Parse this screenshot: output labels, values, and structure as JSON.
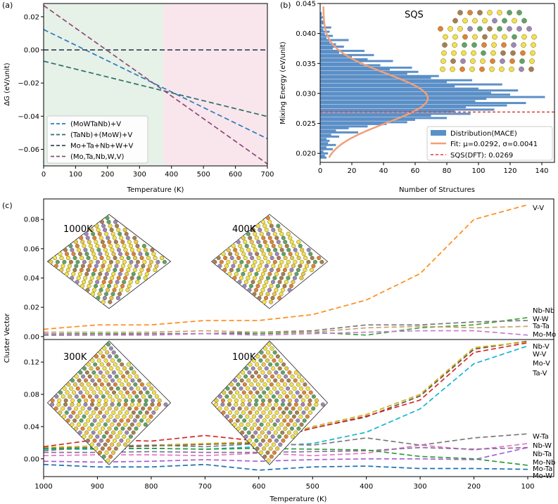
{
  "panel_labels": {
    "a": "(a)",
    "b": "(b)",
    "c": "(c)"
  },
  "chart_data": [
    {
      "id": "a",
      "type": "line",
      "title": "",
      "xlabel": "Temperature (K)",
      "ylabel": "ΔG (eV/unit)",
      "xlim": [
        0,
        700
      ],
      "ylim": [
        -0.07,
        0.028
      ],
      "xticks": [
        0,
        100,
        200,
        300,
        400,
        500,
        600,
        700
      ],
      "yticks": [
        -0.06,
        -0.04,
        -0.02,
        0.0,
        0.02
      ],
      "ytick_labels": [
        "−0.06",
        "−0.04",
        "−0.02",
        "0.00",
        "0.02"
      ],
      "regions": [
        {
          "x0": 0,
          "x1": 375,
          "color": "#e6f1e8"
        },
        {
          "x0": 375,
          "x1": 700,
          "color": "#f8e6ec"
        }
      ],
      "series": [
        {
          "name": "(MoWTaNb)+V",
          "color": "#2b7bba",
          "dash": "7,4",
          "x": [
            0,
            700
          ],
          "y": [
            0.0123,
            -0.0536
          ]
        },
        {
          "name": "(TaNb)+(MoW)+V",
          "color": "#2e6e66",
          "dash": "7,4",
          "x": [
            0,
            700
          ],
          "y": [
            -0.0068,
            -0.0402
          ]
        },
        {
          "name": "Mo+Ta+Nb+W+V",
          "color": "#3c4a5a",
          "dash": "7,4",
          "x": [
            0,
            700
          ],
          "y": [
            0.0,
            0.0
          ]
        },
        {
          "name": "(Mo,Ta,Nb,W,V)",
          "color": "#8e4a76",
          "dash": "7,4",
          "x": [
            0,
            700
          ],
          "y": [
            0.0268,
            -0.0688
          ]
        }
      ],
      "legend": "lower-left"
    },
    {
      "id": "b",
      "type": "bar",
      "orientation": "horizontal",
      "xlabel": "Number of Structures",
      "ylabel": "Mixing Energy (eV/unit)",
      "xlim": [
        0,
        148
      ],
      "ylim": [
        0.0185,
        0.045
      ],
      "xticks": [
        0,
        20,
        40,
        60,
        80,
        100,
        120,
        140
      ],
      "yticks": [
        0.02,
        0.025,
        0.03,
        0.035,
        0.04,
        0.045
      ],
      "ytick_labels": [
        "0.020",
        "0.025",
        "0.030",
        "0.035",
        "0.040",
        "0.045"
      ],
      "inset_label": "SQS",
      "bin_width": 0.00035,
      "bins_center": [
        0.0193,
        0.0196,
        0.02,
        0.0203,
        0.0207,
        0.021,
        0.0214,
        0.0217,
        0.0221,
        0.0224,
        0.0228,
        0.0231,
        0.0235,
        0.0238,
        0.0242,
        0.0245,
        0.0249,
        0.0252,
        0.0256,
        0.0259,
        0.0263,
        0.0266,
        0.027,
        0.0273,
        0.0277,
        0.028,
        0.0284,
        0.0287,
        0.0291,
        0.0294,
        0.0298,
        0.0301,
        0.0305,
        0.0308,
        0.0312,
        0.0315,
        0.0319,
        0.0322,
        0.0326,
        0.0329,
        0.0333,
        0.0336,
        0.034,
        0.0343,
        0.0347,
        0.035,
        0.0354,
        0.0357,
        0.0361,
        0.0364,
        0.0368,
        0.0371,
        0.0375,
        0.0378,
        0.0382,
        0.0385,
        0.0389,
        0.0392,
        0.0396,
        0.0399,
        0.0403,
        0.0406,
        0.041,
        0.0413,
        0.0417,
        0.042,
        0.0424,
        0.0427,
        0.0431,
        0.0434
      ],
      "counts": [
        4,
        3,
        5,
        2,
        8,
        4,
        10,
        5,
        6,
        4,
        12,
        7,
        24,
        10,
        18,
        30,
        42,
        55,
        60,
        80,
        70,
        95,
        85,
        110,
        92,
        118,
        130,
        98,
        105,
        142,
        120,
        108,
        125,
        100,
        85,
        115,
        80,
        96,
        70,
        75,
        55,
        62,
        44,
        58,
        38,
        25,
        46,
        30,
        20,
        34,
        12,
        28,
        8,
        15,
        10,
        6,
        18,
        4,
        8,
        3,
        6,
        2,
        7,
        1,
        3,
        2,
        1,
        2,
        1,
        1
      ],
      "fit": {
        "mu": 0.0292,
        "sigma": 0.0041,
        "amplitude": 66,
        "offset": 2,
        "color": "#f0a07a"
      },
      "dft_line": {
        "y": 0.0269,
        "color": "#e53935"
      },
      "bar_color": "#5b8fc7",
      "legend_entries": [
        "Distribution(MACE)",
        "Fit: μ=0.0292, σ=0.0041",
        "SQS(DFT): 0.0269"
      ],
      "legend": "lower-right"
    },
    {
      "id": "c_top",
      "type": "line",
      "ylabel": "Cluster Vector",
      "xlim": [
        1000,
        100
      ],
      "ylim": [
        -0.002,
        0.094
      ],
      "x": [
        1000,
        900,
        800,
        700,
        600,
        500,
        400,
        300,
        200,
        100
      ],
      "yticks": [
        0.0,
        0.02,
        0.04,
        0.06,
        0.08
      ],
      "ytick_labels": [
        "0.00",
        "0.02",
        "0.04",
        "0.06",
        "0.08"
      ],
      "insets": [
        {
          "label": "1000K",
          "color": "#c23b4f"
        },
        {
          "label": "400K",
          "color": "#c23b4f"
        }
      ],
      "series": [
        {
          "name": "V-V",
          "color": "#ff8c1a",
          "y": [
            0.005,
            0.008,
            0.008,
            0.011,
            0.011,
            0.015,
            0.025,
            0.043,
            0.08,
            0.09
          ]
        },
        {
          "name": "Nb-Nb",
          "color": "#3aa33a",
          "y": [
            0.002,
            0.002,
            0.002,
            0.002,
            0.002,
            0.003,
            0.001,
            0.006,
            0.008,
            0.013
          ]
        },
        {
          "name": "W-W",
          "color": "#7a7a7a",
          "y": [
            0.001,
            0.001,
            0.002,
            0.002,
            0.003,
            0.004,
            0.008,
            0.008,
            0.01,
            0.011
          ]
        },
        {
          "name": "Ta-Ta",
          "color": "#c6a26a",
          "y": [
            0.003,
            0.003,
            0.003,
            0.004,
            0.003,
            0.003,
            0.006,
            0.007,
            0.006,
            0.007
          ]
        },
        {
          "name": "Mo-Mo",
          "color": "#c77dd1",
          "y": [
            0.002,
            0.001,
            0.001,
            0.002,
            0.001,
            0.002,
            0.003,
            0.004,
            0.004,
            0.001
          ]
        }
      ]
    },
    {
      "id": "c_bottom",
      "type": "line",
      "xlabel": "Temperature (K)",
      "xlim": [
        1000,
        100
      ],
      "ylim": [
        -0.022,
        0.148
      ],
      "x": [
        1000,
        900,
        800,
        700,
        600,
        500,
        400,
        300,
        200,
        100
      ],
      "xticks": [
        1000,
        900,
        800,
        700,
        600,
        500,
        400,
        300,
        200,
        100
      ],
      "yticks": [
        0.0,
        0.04,
        0.08,
        0.12
      ],
      "ytick_labels": [
        "0.00",
        "0.04",
        "0.08",
        "0.12"
      ],
      "insets": [
        {
          "label": "300K",
          "color": "#c23b4f"
        },
        {
          "label": "100K",
          "color": "#f5b38f"
        }
      ],
      "series": [
        {
          "name": "Nb-V",
          "color": "#6b4f3a",
          "y": [
            0.013,
            0.014,
            0.016,
            0.018,
            0.02,
            0.038,
            0.052,
            0.078,
            0.136,
            0.146
          ]
        },
        {
          "name": "W-V",
          "color": "#c5b21a",
          "y": [
            0.014,
            0.016,
            0.017,
            0.019,
            0.021,
            0.04,
            0.055,
            0.08,
            0.138,
            0.145
          ]
        },
        {
          "name": "Mo-V",
          "color": "#d62728",
          "y": [
            0.015,
            0.024,
            0.022,
            0.029,
            0.022,
            0.038,
            0.053,
            0.073,
            0.132,
            0.144
          ]
        },
        {
          "name": "Ta-V",
          "color": "#17b3cf",
          "y": [
            0.012,
            0.012,
            0.013,
            0.012,
            0.015,
            0.019,
            0.033,
            0.062,
            0.118,
            0.14
          ]
        },
        {
          "name": "W-Ta",
          "color": "#7a7a7a",
          "y": [
            0.01,
            0.015,
            0.017,
            0.015,
            0.019,
            0.017,
            0.026,
            0.017,
            0.026,
            0.031
          ]
        },
        {
          "name": "Nb-W",
          "color": "#e377c2",
          "y": [
            0.004,
            0.005,
            0.005,
            0.004,
            0.007,
            0.004,
            0.007,
            0.017,
            0.011,
            0.019
          ]
        },
        {
          "name": "Nb-Ta",
          "color": "#8c6d9e",
          "y": [
            0.008,
            0.008,
            0.009,
            0.008,
            0.008,
            0.009,
            0.01,
            0.014,
            0.012,
            0.014
          ]
        },
        {
          "name": "Mo-Nb",
          "color": "#a65fd6",
          "y": [
            -0.003,
            -0.004,
            -0.003,
            -0.001,
            -0.003,
            -0.001,
            0.0,
            0.0,
            -0.001,
            0.014
          ]
        },
        {
          "name": "Mo-Ta",
          "color": "#2e9c3a",
          "y": [
            0.013,
            0.013,
            0.013,
            0.012,
            0.013,
            0.012,
            0.011,
            0.003,
            0.0,
            -0.008
          ]
        },
        {
          "name": "Mo-W",
          "color": "#1f6fb0",
          "y": [
            -0.007,
            -0.01,
            -0.01,
            -0.007,
            -0.014,
            -0.01,
            -0.009,
            -0.012,
            -0.012,
            -0.013
          ]
        }
      ]
    }
  ]
}
